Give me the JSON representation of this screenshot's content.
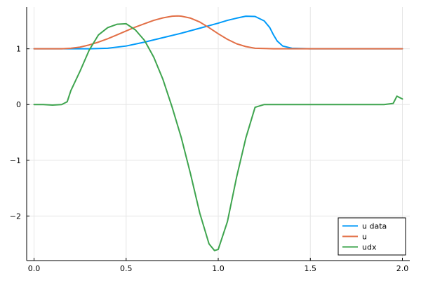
{
  "chart_data": {
    "type": "line",
    "title": "",
    "xlabel": "",
    "ylabel": "",
    "xlim": [
      -0.04,
      2.04
    ],
    "ylim": [
      -2.8,
      1.75
    ],
    "xticks": [
      0.0,
      0.5,
      1.0,
      1.5,
      2.0
    ],
    "xtick_labels": [
      "0.0",
      "0.5",
      "1.0",
      "1.5",
      "2.0"
    ],
    "yticks": [
      1,
      0,
      -1,
      -2
    ],
    "ytick_labels": [
      "1",
      "0",
      "−1",
      "−2"
    ],
    "grid": true,
    "legend_position": "bottom-right",
    "legend": [
      "u data",
      "u",
      "udx"
    ],
    "series": [
      {
        "name": "u data",
        "color": "#009AF9",
        "x": [
          0.0,
          0.1,
          0.2,
          0.3,
          0.4,
          0.5,
          0.6,
          0.7,
          0.8,
          0.9,
          1.0,
          1.05,
          1.1,
          1.15,
          1.2,
          1.25,
          1.28,
          1.3,
          1.32,
          1.35,
          1.4,
          1.5,
          1.6,
          1.8,
          2.0
        ],
        "y": [
          1.0,
          1.0,
          1.0,
          1.0,
          1.01,
          1.05,
          1.12,
          1.2,
          1.28,
          1.37,
          1.46,
          1.51,
          1.55,
          1.585,
          1.58,
          1.5,
          1.38,
          1.25,
          1.14,
          1.05,
          1.01,
          1.0,
          1.0,
          1.0,
          1.0
        ]
      },
      {
        "name": "u",
        "color": "#E26F46",
        "x": [
          0.0,
          0.15,
          0.2,
          0.25,
          0.3,
          0.35,
          0.4,
          0.45,
          0.5,
          0.55,
          0.6,
          0.65,
          0.7,
          0.75,
          0.78,
          0.8,
          0.85,
          0.9,
          0.95,
          1.0,
          1.05,
          1.1,
          1.15,
          1.2,
          1.3,
          1.5,
          2.0
        ],
        "y": [
          1.0,
          1.0,
          1.01,
          1.03,
          1.07,
          1.12,
          1.18,
          1.25,
          1.32,
          1.39,
          1.45,
          1.51,
          1.555,
          1.585,
          1.59,
          1.585,
          1.55,
          1.48,
          1.38,
          1.27,
          1.17,
          1.09,
          1.04,
          1.01,
          1.0,
          1.0,
          1.0
        ]
      },
      {
        "name": "udx",
        "color": "#3EA44E",
        "x": [
          0.0,
          0.05,
          0.1,
          0.15,
          0.18,
          0.2,
          0.25,
          0.3,
          0.35,
          0.4,
          0.45,
          0.5,
          0.55,
          0.6,
          0.65,
          0.7,
          0.75,
          0.8,
          0.85,
          0.9,
          0.95,
          0.98,
          1.0,
          1.05,
          1.1,
          1.15,
          1.2,
          1.25,
          1.3,
          1.35,
          1.4,
          1.5,
          1.6,
          1.7,
          1.8,
          1.9,
          1.95,
          1.97,
          2.0
        ],
        "y": [
          0.0,
          0.0,
          -0.01,
          0.0,
          0.05,
          0.25,
          0.6,
          0.98,
          1.25,
          1.38,
          1.44,
          1.45,
          1.34,
          1.15,
          0.85,
          0.45,
          -0.05,
          -0.6,
          -1.25,
          -1.95,
          -2.5,
          -2.62,
          -2.6,
          -2.1,
          -1.3,
          -0.6,
          -0.05,
          0.0,
          0.0,
          0.0,
          0.0,
          0.0,
          0.0,
          0.0,
          0.0,
          0.0,
          0.02,
          0.15,
          0.1
        ]
      }
    ]
  }
}
